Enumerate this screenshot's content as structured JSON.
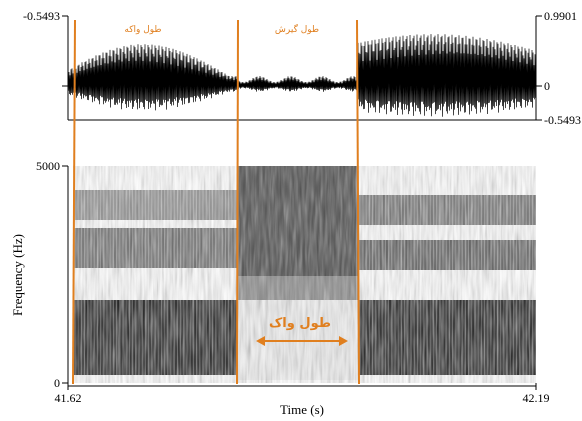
{
  "waveform": {
    "amp_top_left": "-0.5493",
    "amp_top_right": "0.9901",
    "amp_mid_right": "0",
    "amp_bottom_right": "-0.5493"
  },
  "spectrogram": {
    "freq_max_label": "5000",
    "freq_min_label": "0",
    "ylabel": "Frequency (Hz)"
  },
  "time_axis": {
    "start": "41.62",
    "end": "42.19",
    "xlabel": "Time (s)"
  },
  "annotations": {
    "segment_1": "طول واکه",
    "segment_2": "طول گیرش",
    "vot_label": "طول واک"
  },
  "colors": {
    "boundary": "#e07f1f",
    "waveform": "#000000",
    "frame": "#000000"
  }
}
